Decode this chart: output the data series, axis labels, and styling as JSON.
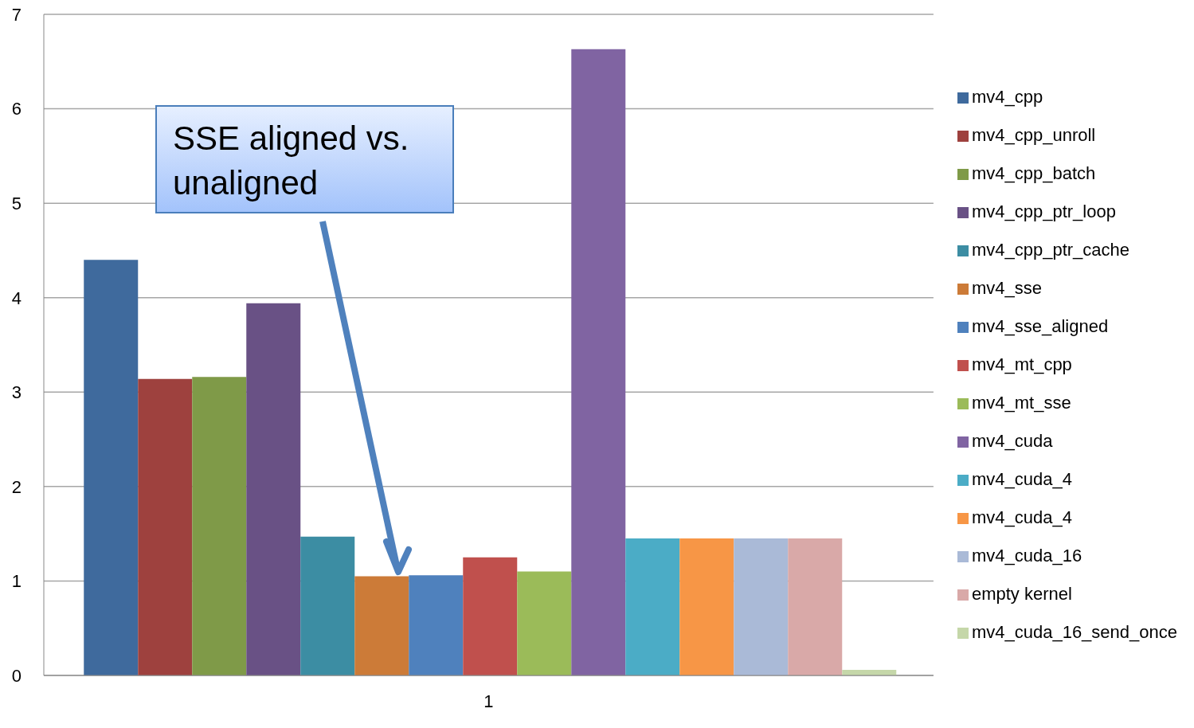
{
  "chart_data": {
    "type": "bar",
    "categories": [
      "1"
    ],
    "series": [
      {
        "name": "mv4_cpp",
        "color": "#3f6a9d",
        "values": [
          4.4
        ]
      },
      {
        "name": "mv4_cpp_unroll",
        "color": "#9e413e",
        "values": [
          3.14
        ]
      },
      {
        "name": "mv4_cpp_batch",
        "color": "#7f9a48",
        "values": [
          3.16
        ]
      },
      {
        "name": "mv4_cpp_ptr_loop",
        "color": "#695185",
        "values": [
          3.94
        ]
      },
      {
        "name": "mv4_cpp_ptr_cache",
        "color": "#3c8da3",
        "values": [
          1.47
        ]
      },
      {
        "name": "mv4_sse",
        "color": "#cc7b38",
        "values": [
          1.05
        ]
      },
      {
        "name": "mv4_sse_aligned",
        "color": "#4f81bd",
        "values": [
          1.06
        ]
      },
      {
        "name": "mv4_mt_cpp",
        "color": "#c0504d",
        "values": [
          1.25
        ]
      },
      {
        "name": "mv4_mt_sse",
        "color": "#9bbb59",
        "values": [
          1.1
        ]
      },
      {
        "name": "mv4_cuda",
        "color": "#8064a2",
        "values": [
          6.63
        ]
      },
      {
        "name": "mv4_cuda_4",
        "color": "#4bacc6",
        "values": [
          1.45
        ]
      },
      {
        "name": "mv4_cuda_4",
        "color": "#f79646",
        "values": [
          1.45
        ]
      },
      {
        "name": "mv4_cuda_16",
        "color": "#aabad7",
        "values": [
          1.45
        ]
      },
      {
        "name": "empty kernel",
        "color": "#d9a9a8",
        "values": [
          1.45
        ]
      },
      {
        "name": "mv4_cuda_16_send_once",
        "color": "#c5d7a9",
        "values": [
          0.06
        ]
      }
    ],
    "ylim": [
      0,
      7
    ],
    "yticks": [
      0,
      1,
      2,
      3,
      4,
      5,
      6,
      7
    ],
    "grid": "y",
    "legend": "right",
    "annotations": [
      "SSE aligned vs. unaligned"
    ]
  }
}
